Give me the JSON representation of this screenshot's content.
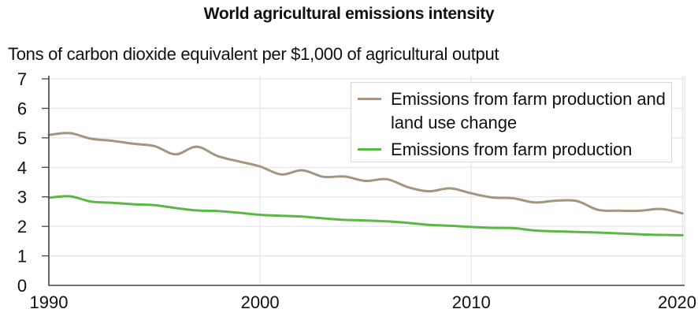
{
  "chart_data": {
    "type": "line",
    "title": "World agricultural emissions intensity",
    "ylabel": "Tons of carbon dioxide equivalent per $1,000 of agricultural output",
    "xlabel": "",
    "xlim": [
      1990,
      2020.1
    ],
    "ylim": [
      0,
      7
    ],
    "xticks": [
      1990,
      2000,
      2010,
      2020
    ],
    "yticks": [
      0,
      1,
      2,
      3,
      4,
      5,
      6,
      7
    ],
    "grid": true,
    "legend_position": "top-right",
    "x": [
      1990,
      1991,
      1992,
      1993,
      1994,
      1995,
      1996,
      1997,
      1998,
      1999,
      2000,
      2001,
      2002,
      2003,
      2004,
      2005,
      2006,
      2007,
      2008,
      2009,
      2010,
      2011,
      2012,
      2013,
      2014,
      2015,
      2016,
      2017,
      2018,
      2019,
      2020
    ],
    "series": [
      {
        "name": "Emissions from farm production and land use change",
        "color": "#a39580",
        "values": [
          5.1,
          5.16,
          4.97,
          4.9,
          4.8,
          4.72,
          4.44,
          4.7,
          4.38,
          4.2,
          4.03,
          3.76,
          3.9,
          3.68,
          3.69,
          3.54,
          3.6,
          3.33,
          3.19,
          3.29,
          3.12,
          2.98,
          2.95,
          2.81,
          2.87,
          2.86,
          2.56,
          2.53,
          2.53,
          2.59,
          2.44
        ]
      },
      {
        "name": "Emissions from farm production",
        "color": "#5cb844",
        "values": [
          2.97,
          3.02,
          2.84,
          2.8,
          2.75,
          2.72,
          2.62,
          2.54,
          2.52,
          2.46,
          2.39,
          2.36,
          2.33,
          2.27,
          2.22,
          2.2,
          2.17,
          2.12,
          2.05,
          2.02,
          1.98,
          1.95,
          1.94,
          1.86,
          1.83,
          1.81,
          1.79,
          1.76,
          1.73,
          1.71,
          1.7
        ]
      }
    ]
  },
  "legend": {
    "items": [
      {
        "label": "Emissions from farm production and land use change",
        "color": "#a39580"
      },
      {
        "label": "Emissions from farm production",
        "color": "#5cb844"
      }
    ]
  },
  "colors": {
    "grid": "#e6e6e6",
    "axis": "#444444"
  }
}
